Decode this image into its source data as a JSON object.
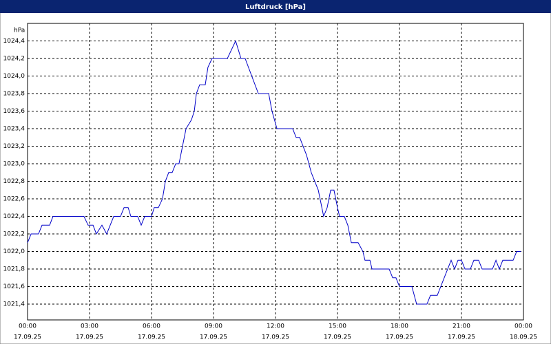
{
  "chart_data": {
    "type": "line",
    "title": "Luftdruck [hPa]",
    "y_label": "hPa",
    "x": [
      0,
      0.17,
      0.53,
      0.7,
      1.07,
      1.23,
      2.73,
      2.93,
      3.17,
      3.33,
      3.6,
      3.83,
      4.17,
      4.5,
      4.67,
      4.87,
      5.0,
      5.33,
      5.5,
      5.67,
      6.0,
      6.13,
      6.33,
      6.53,
      6.67,
      6.83,
      7.0,
      7.17,
      7.33,
      7.5,
      7.67,
      7.93,
      8.07,
      8.17,
      8.33,
      8.6,
      8.73,
      8.93,
      9.67,
      10.07,
      10.33,
      10.53,
      11.17,
      11.67,
      11.83,
      12.07,
      12.83,
      13.0,
      13.17,
      13.5,
      13.73,
      14.07,
      14.33,
      14.5,
      14.67,
      14.83,
      15.0,
      15.1,
      15.33,
      15.5,
      15.67,
      16.0,
      16.23,
      16.33,
      16.57,
      16.67,
      17.5,
      17.67,
      17.83,
      18.0,
      18.6,
      18.83,
      19.33,
      19.5,
      19.83,
      20.5,
      20.67,
      20.83,
      21.0,
      21.17,
      21.43,
      21.6,
      21.83,
      22.0,
      22.5,
      22.67,
      22.83,
      23.0,
      23.5,
      23.67,
      23.87
    ],
    "values": [
      1022.1,
      1022.2,
      1022.2,
      1022.3,
      1022.3,
      1022.4,
      1022.4,
      1022.3,
      1022.3,
      1022.2,
      1022.3,
      1022.2,
      1022.4,
      1022.4,
      1022.5,
      1022.5,
      1022.4,
      1022.4,
      1022.3,
      1022.4,
      1022.4,
      1022.5,
      1022.5,
      1022.6,
      1022.8,
      1022.9,
      1022.9,
      1023.0,
      1023.0,
      1023.2,
      1023.4,
      1023.5,
      1023.6,
      1023.8,
      1023.9,
      1023.9,
      1024.1,
      1024.2,
      1024.2,
      1024.4,
      1024.2,
      1024.2,
      1023.8,
      1023.8,
      1023.6,
      1023.4,
      1023.4,
      1023.3,
      1023.3,
      1023.1,
      1022.9,
      1022.7,
      1022.4,
      1022.5,
      1022.7,
      1022.7,
      1022.5,
      1022.4,
      1022.4,
      1022.3,
      1022.1,
      1022.1,
      1022.0,
      1021.9,
      1021.9,
      1021.8,
      1021.8,
      1021.7,
      1021.7,
      1021.6,
      1021.6,
      1021.4,
      1021.4,
      1021.5,
      1021.5,
      1021.9,
      1021.8,
      1021.9,
      1021.9,
      1021.8,
      1021.8,
      1021.9,
      1021.9,
      1021.8,
      1021.8,
      1021.9,
      1021.8,
      1021.9,
      1021.9,
      1022.0,
      1022.0
    ],
    "color": "#0000c8",
    "xlim": [
      0,
      24
    ],
    "xticks": [
      {
        "value": 0,
        "label": "00:00"
      },
      {
        "value": 3,
        "label": "03:00"
      },
      {
        "value": 6,
        "label": "06:00"
      },
      {
        "value": 9,
        "label": "09:00"
      },
      {
        "value": 12,
        "label": "12:00"
      },
      {
        "value": 15,
        "label": "15:00"
      },
      {
        "value": 18,
        "label": "18:00"
      },
      {
        "value": 21,
        "label": "21:00"
      },
      {
        "value": 24,
        "label": "00:00"
      }
    ],
    "xtick_dates": [
      "17.09.25",
      "17.09.25",
      "17.09.25",
      "17.09.25",
      "17.09.25",
      "17.09.25",
      "17.09.25",
      "17.09.25",
      "18.09.25"
    ],
    "ylim": [
      1021.22,
      1024.6
    ],
    "yticks": [
      {
        "value": 1021.4,
        "label": "1021,4"
      },
      {
        "value": 1021.6,
        "label": "1021,6"
      },
      {
        "value": 1021.8,
        "label": "1021,8"
      },
      {
        "value": 1022.0,
        "label": "1022,0"
      },
      {
        "value": 1022.2,
        "label": "1022,2"
      },
      {
        "value": 1022.4,
        "label": "1022,4"
      },
      {
        "value": 1022.6,
        "label": "1022,6"
      },
      {
        "value": 1022.8,
        "label": "1022,8"
      },
      {
        "value": 1023.0,
        "label": "1023,0"
      },
      {
        "value": 1023.2,
        "label": "1023,2"
      },
      {
        "value": 1023.4,
        "label": "1023,4"
      },
      {
        "value": 1023.6,
        "label": "1023,6"
      },
      {
        "value": 1023.8,
        "label": "1023,8"
      },
      {
        "value": 1024.0,
        "label": "1024,0"
      },
      {
        "value": 1024.2,
        "label": "1024,2"
      },
      {
        "value": 1024.4,
        "label": "1024,4"
      }
    ],
    "grid": true
  }
}
